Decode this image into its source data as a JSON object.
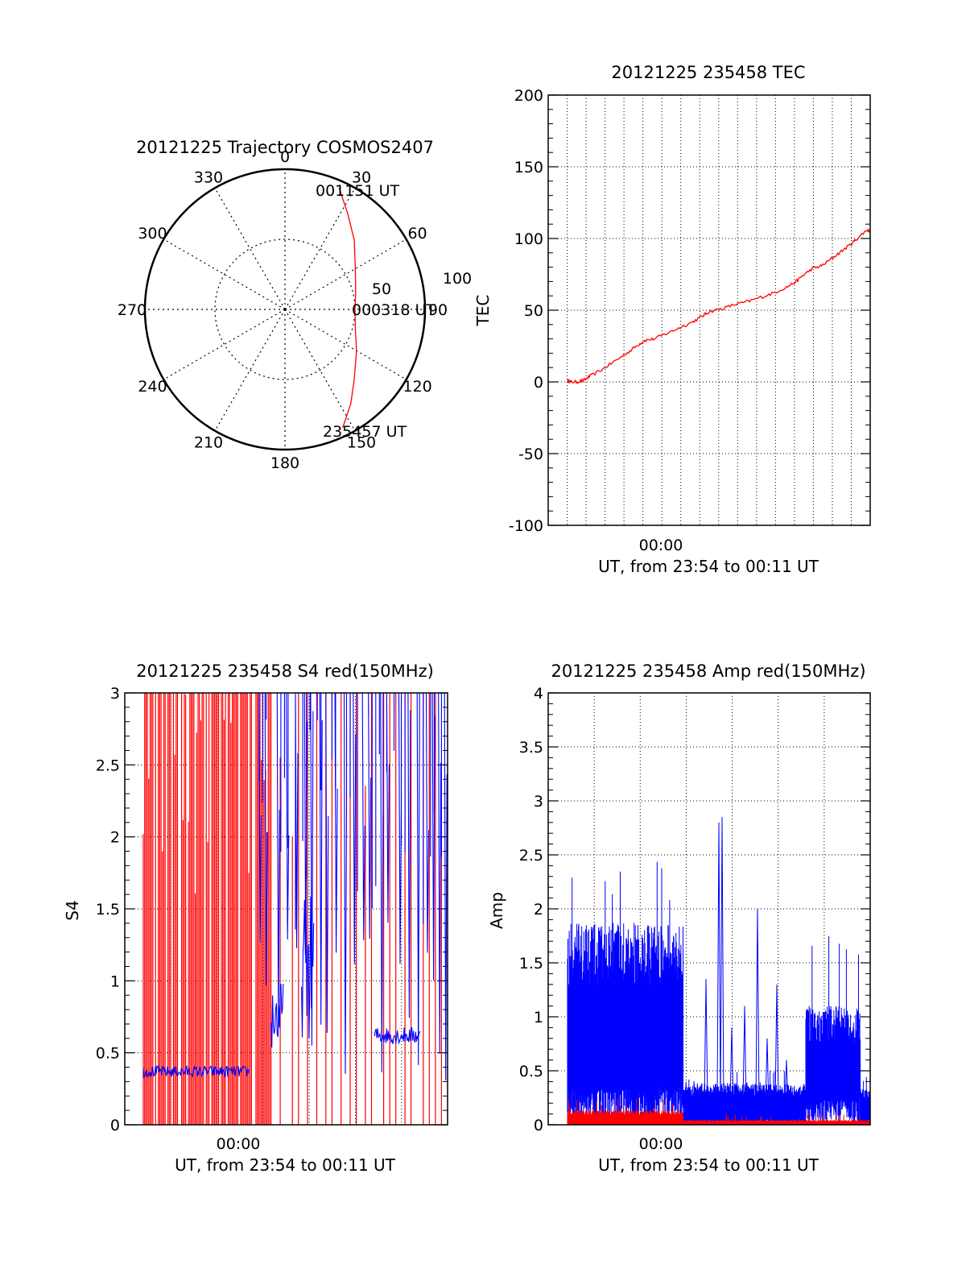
{
  "colors": {
    "red": "#ff0000",
    "blue": "#0000ff",
    "axis": "#000000"
  },
  "chart_data": [
    {
      "id": "trajectory",
      "type": "polar",
      "title": "20121225 Trajectory COSMOS2407",
      "azimuth_labels": [
        "0",
        "30",
        "60",
        "90",
        "120",
        "150",
        "180",
        "210",
        "240",
        "270",
        "300",
        "330"
      ],
      "radial_ticks": [
        50,
        100
      ],
      "radius_max": 100,
      "track": {
        "color": "red",
        "start_label": "235457 UT",
        "mid_label": "000318 UT",
        "end_label": "001151 UT",
        "points": [
          {
            "az": 154,
            "r": 94
          },
          {
            "az": 145,
            "r": 82
          },
          {
            "az": 135,
            "r": 70
          },
          {
            "az": 120,
            "r": 59
          },
          {
            "az": 105,
            "r": 52
          },
          {
            "az": 90,
            "r": 50
          },
          {
            "az": 76,
            "r": 52
          },
          {
            "az": 60,
            "r": 58
          },
          {
            "az": 45,
            "r": 70
          },
          {
            "az": 33,
            "r": 82
          },
          {
            "az": 24,
            "r": 95
          }
        ]
      }
    },
    {
      "id": "tec",
      "type": "line",
      "title": "20121225 235458 TEC",
      "ylabel": "TEC",
      "xlabel": "UT, from 23:54 to 00:11 UT",
      "x_tick_label": "00:00",
      "ylim": [
        -100,
        200
      ],
      "y_ticks": [
        "-100",
        "-50",
        "0",
        "50",
        "100",
        "150",
        "200"
      ],
      "grid": true,
      "series": [
        {
          "color": "red",
          "x": [
            0.06,
            0.07,
            0.09,
            0.11,
            0.13,
            0.17,
            0.21,
            0.25,
            0.28,
            0.3,
            0.33,
            0.37,
            0.41,
            0.45,
            0.48,
            0.5,
            0.54,
            0.58,
            0.62,
            0.66,
            0.7,
            0.74,
            0.77,
            0.79,
            0.82,
            0.85,
            0.88,
            0.91,
            0.94,
            0.96,
            0.99,
            1.0
          ],
          "y": [
            1,
            0,
            0,
            1,
            4,
            9,
            15,
            21,
            26,
            29,
            30,
            34,
            38,
            42,
            46,
            49,
            51,
            54,
            56,
            59,
            62,
            66,
            70,
            74,
            79,
            81,
            86,
            91,
            96,
            100,
            106,
            105
          ]
        }
      ]
    },
    {
      "id": "s4",
      "type": "line",
      "title": "20121225 235458 S4 red(150MHz)",
      "ylabel": "S4",
      "xlabel": "UT, from 23:54 to 00:11 UT",
      "x_tick_label": "00:00",
      "ylim": [
        0,
        3
      ],
      "y_ticks": [
        "0",
        "0.5",
        "1",
        "1.5",
        "2",
        "2.5",
        "3"
      ],
      "grid": true,
      "series": [
        {
          "color": "blue",
          "segments": [
            {
              "x0": 0.0,
              "x1": 0.35,
              "mean": 0.37,
              "noise": 0.04
            },
            {
              "x0": 0.42,
              "x1": 0.46,
              "mean": 0.75,
              "noise": 0.25
            },
            {
              "x0": 0.52,
              "x1": 0.56,
              "mean": 1.1,
              "noise": 0.5
            },
            {
              "x0": 0.76,
              "x1": 0.91,
              "mean": 0.62,
              "noise": 0.06
            }
          ],
          "spikes": [
            0.38,
            0.4,
            0.44,
            0.47,
            0.5,
            0.53,
            0.55,
            0.58,
            0.6,
            0.63,
            0.66,
            0.69,
            0.72,
            0.74,
            0.78,
            0.8,
            0.84,
            0.87,
            0.9,
            0.93,
            0.95,
            0.97,
            0.99
          ]
        },
        {
          "color": "red",
          "dense_ranges": [
            [
              0.0,
              0.36
            ],
            [
              0.37,
              0.42
            ]
          ],
          "sparse_spikes": [
            0.45,
            0.49,
            0.51,
            0.54,
            0.57,
            0.6,
            0.62,
            0.65,
            0.68,
            0.7,
            0.73,
            0.75,
            0.79,
            0.81,
            0.83,
            0.86,
            0.88,
            0.92,
            0.94,
            0.96,
            0.98
          ]
        }
      ]
    },
    {
      "id": "amp",
      "type": "line",
      "title": "20121225 235458 Amp red(150MHz)",
      "ylabel": "Amp",
      "xlabel": "UT, from 23:54 to 00:11 UT",
      "x_tick_label": "00:00",
      "ylim": [
        0,
        4
      ],
      "y_ticks": [
        "0",
        "0.5",
        "1",
        "1.5",
        "2",
        "2.5",
        "3",
        "3.5",
        "4"
      ],
      "grid": true,
      "series": [
        {
          "color": "blue",
          "segments": [
            {
              "x0": 0.06,
              "x1": 0.42,
              "base": 0.35,
              "top": 1.7,
              "peak": 2.45
            },
            {
              "x0": 0.42,
              "x1": 0.8,
              "base": 0.05,
              "top": 0.35,
              "peak": 0.5
            },
            {
              "x0": 0.8,
              "x1": 0.97,
              "base": 0.25,
              "top": 1.0,
              "peak": 1.75
            },
            {
              "x0": 0.97,
              "x1": 1.0,
              "base": 0.05,
              "top": 0.3,
              "peak": 0.45
            }
          ],
          "spikes": [
            {
              "x": 0.49,
              "y": 1.35
            },
            {
              "x": 0.53,
              "y": 2.8
            },
            {
              "x": 0.54,
              "y": 2.85
            },
            {
              "x": 0.57,
              "y": 0.9
            },
            {
              "x": 0.61,
              "y": 1.1
            },
            {
              "x": 0.65,
              "y": 2.0
            },
            {
              "x": 0.68,
              "y": 0.8
            },
            {
              "x": 0.71,
              "y": 1.3
            },
            {
              "x": 0.74,
              "y": 0.6
            }
          ]
        },
        {
          "color": "red",
          "segments": [
            {
              "x0": 0.06,
              "x1": 0.42,
              "base": 0.0,
              "top": 0.12,
              "peak": 0.25
            },
            {
              "x0": 0.42,
              "x1": 1.0,
              "base": 0.0,
              "top": 0.04,
              "peak": 0.1
            }
          ]
        }
      ]
    }
  ]
}
